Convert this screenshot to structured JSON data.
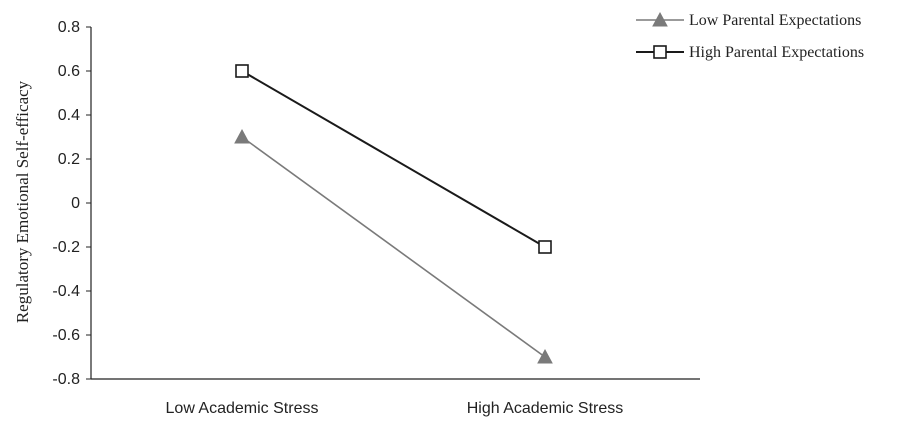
{
  "chart_data": {
    "type": "line",
    "title": "",
    "xlabel": "",
    "ylabel": "Regulatory Emotional Self-efficacy",
    "categories": [
      "Low Academic Stress",
      "High Academic Stress"
    ],
    "ylim": [
      -0.8,
      0.8
    ],
    "yticks": [
      0.8,
      0.6,
      0.4,
      0.2,
      0,
      -0.2,
      -0.4,
      -0.6,
      -0.8
    ],
    "ytick_labels": [
      "0.8",
      "0.6",
      "0.4",
      "0.2",
      "0",
      "-0.2",
      "-0.4",
      "-0.6",
      "-0.8"
    ],
    "grid": false,
    "legend_position": "top-right",
    "series": [
      {
        "name": "Low Parental Expectations",
        "values": [
          0.3,
          -0.7
        ],
        "marker": "triangle",
        "color": "#7a7a7a"
      },
      {
        "name": "High Parental Expectations",
        "values": [
          0.6,
          -0.2
        ],
        "marker": "square",
        "color": "#1a1a1a"
      }
    ]
  }
}
